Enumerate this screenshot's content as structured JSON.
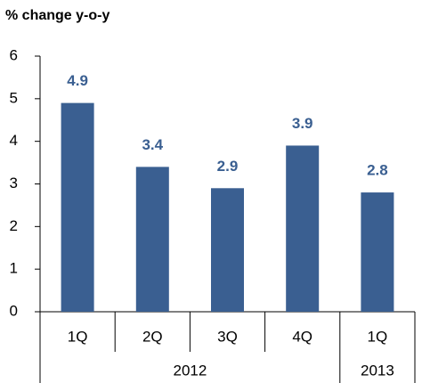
{
  "chart_data": {
    "type": "bar",
    "title": "% change y-o-y",
    "categories": [
      "1Q",
      "2Q",
      "3Q",
      "4Q",
      "1Q"
    ],
    "groups": [
      "2012",
      null,
      null,
      null,
      "2013"
    ],
    "values": [
      4.9,
      3.4,
      2.9,
      3.9,
      2.8
    ],
    "color": "#3a5f91",
    "ylim": [
      0,
      6
    ],
    "yticks": [
      0,
      1,
      2,
      3,
      4,
      5,
      6
    ],
    "grid": false
  }
}
